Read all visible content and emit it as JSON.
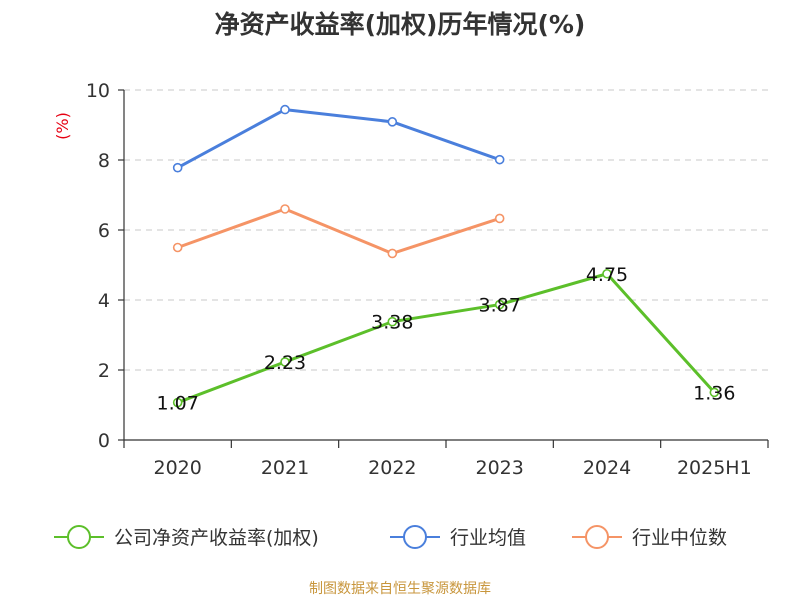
{
  "chart_data": {
    "type": "line",
    "title": "净资产收益率(加权)历年情况(%)",
    "unit_label": "(%)",
    "categories": [
      "2020",
      "2021",
      "2022",
      "2023",
      "2024",
      "2025H1"
    ],
    "ylim": [
      0,
      10
    ],
    "yticks": [
      "0",
      "2",
      "4",
      "6",
      "8",
      "10"
    ],
    "grid": true,
    "legend_position": "bottom",
    "series": [
      {
        "name": "公司净资产收益率(加权)",
        "color": "#5cbf2a",
        "values": [
          1.07,
          2.23,
          3.38,
          3.87,
          4.75,
          1.36
        ],
        "labels": [
          "1.07",
          "2.23",
          "3.38",
          "3.87",
          "4.75",
          "1.36"
        ],
        "show_labels": true
      },
      {
        "name": "行业均值",
        "color": "#4a7fdc",
        "values": [
          7.78,
          9.44,
          9.09,
          8.01,
          null,
          null
        ],
        "show_labels": false
      },
      {
        "name": "行业中位数",
        "color": "#f59466",
        "values": [
          5.5,
          6.6,
          5.33,
          6.33,
          null,
          null
        ],
        "show_labels": false
      }
    ],
    "source": "制图数据来自恒生聚源数据库"
  }
}
